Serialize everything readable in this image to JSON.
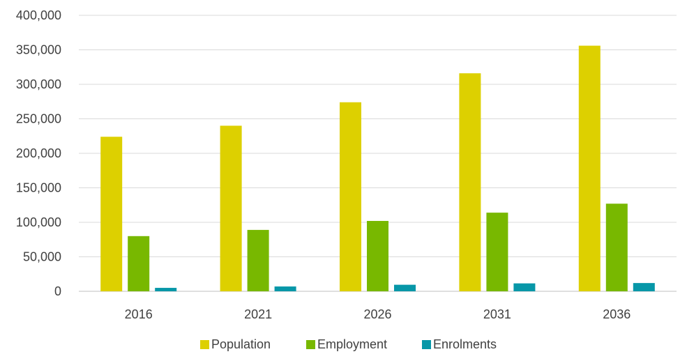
{
  "chart_data": {
    "type": "bar",
    "categories": [
      "2016",
      "2021",
      "2026",
      "2031",
      "2036"
    ],
    "series": [
      {
        "name": "Population",
        "color": "#DDD000",
        "values": [
          224000,
          240000,
          274000,
          316000,
          356000
        ]
      },
      {
        "name": "Employment",
        "color": "#78B800",
        "values": [
          80000,
          89000,
          102000,
          114000,
          127000
        ]
      },
      {
        "name": "Enrolments",
        "color": "#0797A8",
        "values": [
          5000,
          7000,
          9500,
          11500,
          12000
        ]
      }
    ],
    "y_ticks": [
      "0",
      "50,000",
      "100,000",
      "150,000",
      "200,000",
      "250,000",
      "300,000",
      "350,000",
      "400,000"
    ],
    "ylim": [
      0,
      400000
    ],
    "grid": true,
    "legend_position": "bottom",
    "title": "",
    "xlabel": "",
    "ylabel": ""
  }
}
